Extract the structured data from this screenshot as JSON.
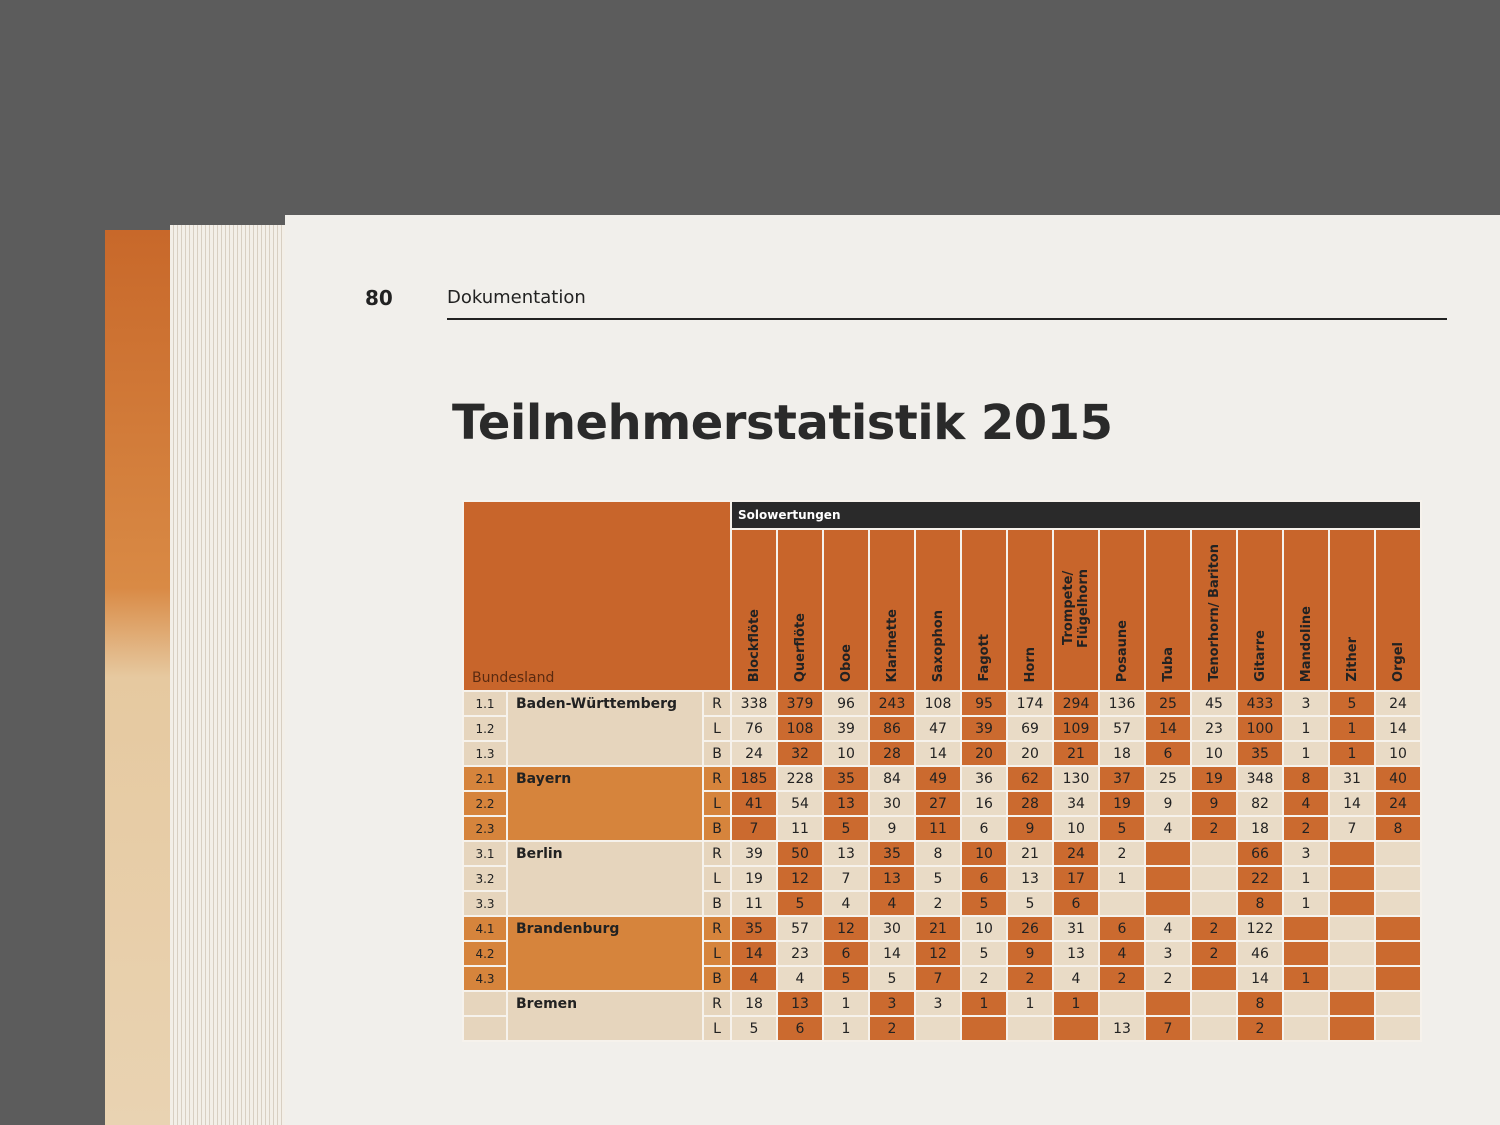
{
  "header": {
    "page_number": "80",
    "section": "Dokumentation"
  },
  "title": "Teilnehmerstatistik 2015",
  "table": {
    "group_header": "Solowertungen",
    "corner_label": "Bundesland",
    "columns": [
      "Blockflöte",
      "Querflöte",
      "Oboe",
      "Klarinette",
      "Saxophon",
      "Fagott",
      "Horn",
      "Trompete/ Flügelhorn",
      "Posaune",
      "Tuba",
      "Tenorhorn/ Bariton",
      "Gitarre",
      "Mandoline",
      "Zither",
      "Orgel"
    ],
    "states": [
      {
        "name": "Baden-Württemberg",
        "rows": [
          {
            "code": "1.1",
            "type": "R",
            "values": [
              338,
              379,
              96,
              243,
              108,
              95,
              174,
              294,
              136,
              25,
              45,
              433,
              3,
              5,
              24
            ]
          },
          {
            "code": "1.2",
            "type": "L",
            "values": [
              76,
              108,
              39,
              86,
              47,
              39,
              69,
              109,
              57,
              14,
              23,
              100,
              1,
              1,
              14
            ]
          },
          {
            "code": "1.3",
            "type": "B",
            "values": [
              24,
              32,
              10,
              28,
              14,
              20,
              20,
              21,
              18,
              6,
              10,
              35,
              1,
              1,
              10
            ]
          }
        ]
      },
      {
        "name": "Bayern",
        "rows": [
          {
            "code": "2.1",
            "type": "R",
            "values": [
              185,
              228,
              35,
              84,
              49,
              36,
              62,
              130,
              37,
              25,
              19,
              348,
              8,
              31,
              40
            ]
          },
          {
            "code": "2.2",
            "type": "L",
            "values": [
              41,
              54,
              13,
              30,
              27,
              16,
              28,
              34,
              19,
              9,
              9,
              82,
              4,
              14,
              24
            ]
          },
          {
            "code": "2.3",
            "type": "B",
            "values": [
              7,
              11,
              5,
              9,
              11,
              6,
              9,
              10,
              5,
              4,
              2,
              18,
              2,
              7,
              8
            ]
          }
        ]
      },
      {
        "name": "Berlin",
        "rows": [
          {
            "code": "3.1",
            "type": "R",
            "values": [
              39,
              50,
              13,
              35,
              8,
              10,
              21,
              24,
              2,
              null,
              null,
              66,
              3,
              null,
              null
            ]
          },
          {
            "code": "3.2",
            "type": "L",
            "values": [
              19,
              12,
              7,
              13,
              5,
              6,
              13,
              17,
              1,
              null,
              null,
              22,
              1,
              null,
              null
            ]
          },
          {
            "code": "3.3",
            "type": "B",
            "values": [
              11,
              5,
              4,
              4,
              2,
              5,
              5,
              6,
              null,
              null,
              null,
              8,
              1,
              null,
              null
            ]
          }
        ]
      },
      {
        "name": "Brandenburg",
        "rows": [
          {
            "code": "4.1",
            "type": "R",
            "values": [
              35,
              57,
              12,
              30,
              21,
              10,
              26,
              31,
              6,
              4,
              2,
              122,
              null,
              null,
              null
            ]
          },
          {
            "code": "4.2",
            "type": "L",
            "values": [
              14,
              23,
              6,
              14,
              12,
              5,
              9,
              13,
              4,
              3,
              2,
              46,
              null,
              null,
              null
            ]
          },
          {
            "code": "4.3",
            "type": "B",
            "values": [
              4,
              4,
              5,
              5,
              7,
              2,
              2,
              4,
              2,
              2,
              null,
              14,
              1,
              null,
              null
            ]
          }
        ]
      },
      {
        "name": "Bremen",
        "rows": [
          {
            "type": "R",
            "values": [
              18,
              13,
              1,
              3,
              3,
              1,
              1,
              1,
              null,
              null,
              null,
              8,
              null,
              null,
              null
            ]
          },
          {
            "type": "L",
            "values": [
              5,
              6,
              1,
              2,
              null,
              null,
              null,
              null,
              13,
              7,
              null,
              2,
              null,
              null,
              null
            ]
          }
        ]
      }
    ]
  }
}
